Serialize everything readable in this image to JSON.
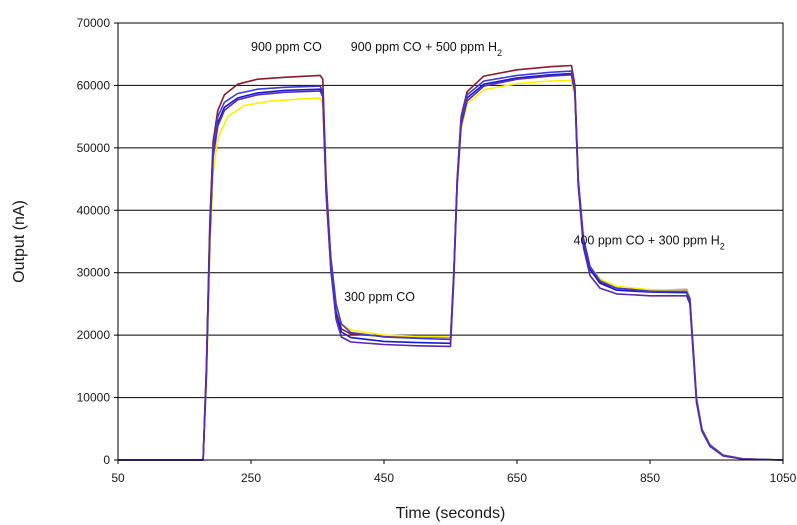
{
  "chart_data": {
    "type": "line",
    "title": "",
    "xlabel": "Time (seconds)",
    "ylabel": "Output (nA)",
    "xlim": [
      50,
      1050
    ],
    "ylim": [
      0,
      70000
    ],
    "xticks": [
      50,
      250,
      450,
      650,
      850,
      1050
    ],
    "yticks": [
      0,
      10000,
      20000,
      30000,
      40000,
      50000,
      60000,
      70000
    ],
    "grid": "horizontal",
    "annotations": [
      {
        "text": "900 ppm CO",
        "x": 250,
        "y": 65500
      },
      {
        "text": "900 ppm CO + 500 ppm H",
        "sub": "2",
        "x": 400,
        "y": 65500
      },
      {
        "text": "300 ppm CO",
        "x": 390,
        "y": 25500
      },
      {
        "text": "400 ppm CO + 300 ppm H",
        "sub": "2",
        "x": 735,
        "y": 34500
      }
    ],
    "series": [
      {
        "color": "#8b1a2b",
        "values": [
          [
            50,
            0
          ],
          [
            172,
            0
          ],
          [
            178,
            0
          ],
          [
            183,
            15000
          ],
          [
            188,
            38000
          ],
          [
            193,
            51000
          ],
          [
            200,
            56000
          ],
          [
            210,
            58500
          ],
          [
            230,
            60200
          ],
          [
            260,
            61000
          ],
          [
            300,
            61300
          ],
          [
            354,
            61600
          ],
          [
            358,
            61000
          ],
          [
            363,
            45000
          ],
          [
            370,
            32000
          ],
          [
            378,
            24000
          ],
          [
            386,
            21000
          ],
          [
            400,
            20200
          ],
          [
            450,
            19800
          ],
          [
            500,
            19700
          ],
          [
            550,
            19600
          ],
          [
            555,
            30000
          ],
          [
            560,
            45000
          ],
          [
            566,
            55000
          ],
          [
            575,
            59000
          ],
          [
            600,
            61500
          ],
          [
            650,
            62500
          ],
          [
            700,
            63000
          ],
          [
            732,
            63200
          ],
          [
            737,
            60000
          ],
          [
            742,
            45000
          ],
          [
            750,
            35000
          ],
          [
            760,
            30500
          ],
          [
            775,
            28500
          ],
          [
            800,
            27500
          ],
          [
            850,
            27200
          ],
          [
            905,
            27300
          ],
          [
            910,
            26000
          ],
          [
            915,
            18000
          ],
          [
            920,
            10000
          ],
          [
            928,
            5000
          ],
          [
            940,
            2500
          ],
          [
            960,
            800
          ],
          [
            990,
            200
          ],
          [
            1050,
            0
          ]
        ]
      },
      {
        "color": "#ffee00",
        "values": [
          [
            50,
            0
          ],
          [
            172,
            0
          ],
          [
            178,
            0
          ],
          [
            183,
            12000
          ],
          [
            188,
            33000
          ],
          [
            193,
            46000
          ],
          [
            200,
            51500
          ],
          [
            215,
            55000
          ],
          [
            240,
            56800
          ],
          [
            280,
            57500
          ],
          [
            320,
            57800
          ],
          [
            354,
            58000
          ],
          [
            358,
            57000
          ],
          [
            363,
            42000
          ],
          [
            370,
            31000
          ],
          [
            378,
            24500
          ],
          [
            386,
            21800
          ],
          [
            400,
            20800
          ],
          [
            450,
            20000
          ],
          [
            500,
            19800
          ],
          [
            550,
            19700
          ],
          [
            555,
            29000
          ],
          [
            560,
            44000
          ],
          [
            566,
            53000
          ],
          [
            575,
            57000
          ],
          [
            600,
            59300
          ],
          [
            650,
            60300
          ],
          [
            700,
            60700
          ],
          [
            732,
            60800
          ],
          [
            737,
            58000
          ],
          [
            742,
            44000
          ],
          [
            750,
            35000
          ],
          [
            760,
            31000
          ],
          [
            775,
            29000
          ],
          [
            800,
            27800
          ],
          [
            850,
            27300
          ],
          [
            905,
            27200
          ],
          [
            910,
            26000
          ],
          [
            915,
            18000
          ],
          [
            920,
            10000
          ],
          [
            928,
            5000
          ],
          [
            940,
            2500
          ],
          [
            960,
            800
          ],
          [
            990,
            200
          ],
          [
            1050,
            0
          ]
        ]
      },
      {
        "color": "#1a1acc",
        "values": [
          [
            50,
            0
          ],
          [
            172,
            0
          ],
          [
            178,
            0
          ],
          [
            183,
            14000
          ],
          [
            188,
            36000
          ],
          [
            193,
            49000
          ],
          [
            200,
            54000
          ],
          [
            210,
            56500
          ],
          [
            230,
            58000
          ],
          [
            260,
            58800
          ],
          [
            300,
            59200
          ],
          [
            354,
            59400
          ],
          [
            358,
            58500
          ],
          [
            363,
            43000
          ],
          [
            370,
            31000
          ],
          [
            378,
            23500
          ],
          [
            386,
            20500
          ],
          [
            400,
            19600
          ],
          [
            450,
            19000
          ],
          [
            500,
            18800
          ],
          [
            550,
            18700
          ],
          [
            555,
            29500
          ],
          [
            560,
            44500
          ],
          [
            566,
            54000
          ],
          [
            575,
            58000
          ],
          [
            600,
            60200
          ],
          [
            650,
            61200
          ],
          [
            700,
            61700
          ],
          [
            732,
            61900
          ],
          [
            737,
            59000
          ],
          [
            742,
            44500
          ],
          [
            750,
            35000
          ],
          [
            760,
            30500
          ],
          [
            775,
            28300
          ],
          [
            800,
            27200
          ],
          [
            850,
            26900
          ],
          [
            905,
            26800
          ],
          [
            910,
            25500
          ],
          [
            915,
            17500
          ],
          [
            920,
            9500
          ],
          [
            928,
            4800
          ],
          [
            940,
            2300
          ],
          [
            960,
            700
          ],
          [
            990,
            150
          ],
          [
            1050,
            0
          ]
        ]
      },
      {
        "color": "#3d3ddb",
        "values": [
          [
            50,
            0
          ],
          [
            172,
            0
          ],
          [
            178,
            0
          ],
          [
            183,
            14500
          ],
          [
            188,
            37000
          ],
          [
            193,
            50000
          ],
          [
            200,
            55000
          ],
          [
            210,
            57300
          ],
          [
            230,
            58700
          ],
          [
            260,
            59400
          ],
          [
            300,
            59700
          ],
          [
            354,
            59900
          ],
          [
            358,
            59000
          ],
          [
            363,
            44000
          ],
          [
            370,
            32500
          ],
          [
            378,
            25000
          ],
          [
            386,
            21800
          ],
          [
            400,
            20400
          ],
          [
            450,
            19700
          ],
          [
            500,
            19500
          ],
          [
            550,
            19300
          ],
          [
            555,
            30000
          ],
          [
            560,
            45000
          ],
          [
            566,
            54500
          ],
          [
            575,
            58500
          ],
          [
            600,
            60700
          ],
          [
            650,
            61600
          ],
          [
            700,
            62100
          ],
          [
            732,
            62300
          ],
          [
            737,
            59500
          ],
          [
            742,
            45000
          ],
          [
            750,
            35500
          ],
          [
            760,
            31000
          ],
          [
            775,
            28700
          ],
          [
            800,
            27500
          ],
          [
            850,
            27000
          ],
          [
            905,
            27000
          ],
          [
            910,
            25800
          ],
          [
            915,
            17800
          ],
          [
            920,
            9800
          ],
          [
            928,
            4900
          ],
          [
            940,
            2400
          ],
          [
            960,
            750
          ],
          [
            990,
            180
          ],
          [
            1050,
            0
          ]
        ]
      },
      {
        "color": "#5a28b4",
        "values": [
          [
            50,
            0
          ],
          [
            172,
            0
          ],
          [
            178,
            0
          ],
          [
            183,
            13500
          ],
          [
            188,
            35500
          ],
          [
            193,
            48500
          ],
          [
            200,
            53500
          ],
          [
            210,
            56000
          ],
          [
            230,
            57700
          ],
          [
            260,
            58500
          ],
          [
            300,
            58900
          ],
          [
            354,
            59100
          ],
          [
            358,
            58200
          ],
          [
            363,
            43000
          ],
          [
            370,
            30500
          ],
          [
            378,
            22500
          ],
          [
            386,
            19700
          ],
          [
            400,
            18900
          ],
          [
            450,
            18500
          ],
          [
            500,
            18300
          ],
          [
            550,
            18200
          ],
          [
            555,
            29000
          ],
          [
            560,
            44000
          ],
          [
            566,
            53500
          ],
          [
            575,
            57500
          ],
          [
            600,
            59900
          ],
          [
            650,
            61000
          ],
          [
            700,
            61500
          ],
          [
            732,
            61700
          ],
          [
            737,
            58800
          ],
          [
            742,
            44000
          ],
          [
            750,
            34000
          ],
          [
            760,
            29500
          ],
          [
            775,
            27500
          ],
          [
            800,
            26600
          ],
          [
            850,
            26300
          ],
          [
            905,
            26300
          ],
          [
            910,
            25000
          ],
          [
            915,
            17000
          ],
          [
            920,
            9200
          ],
          [
            928,
            4600
          ],
          [
            940,
            2200
          ],
          [
            960,
            650
          ],
          [
            990,
            150
          ],
          [
            1050,
            0
          ]
        ]
      }
    ]
  }
}
